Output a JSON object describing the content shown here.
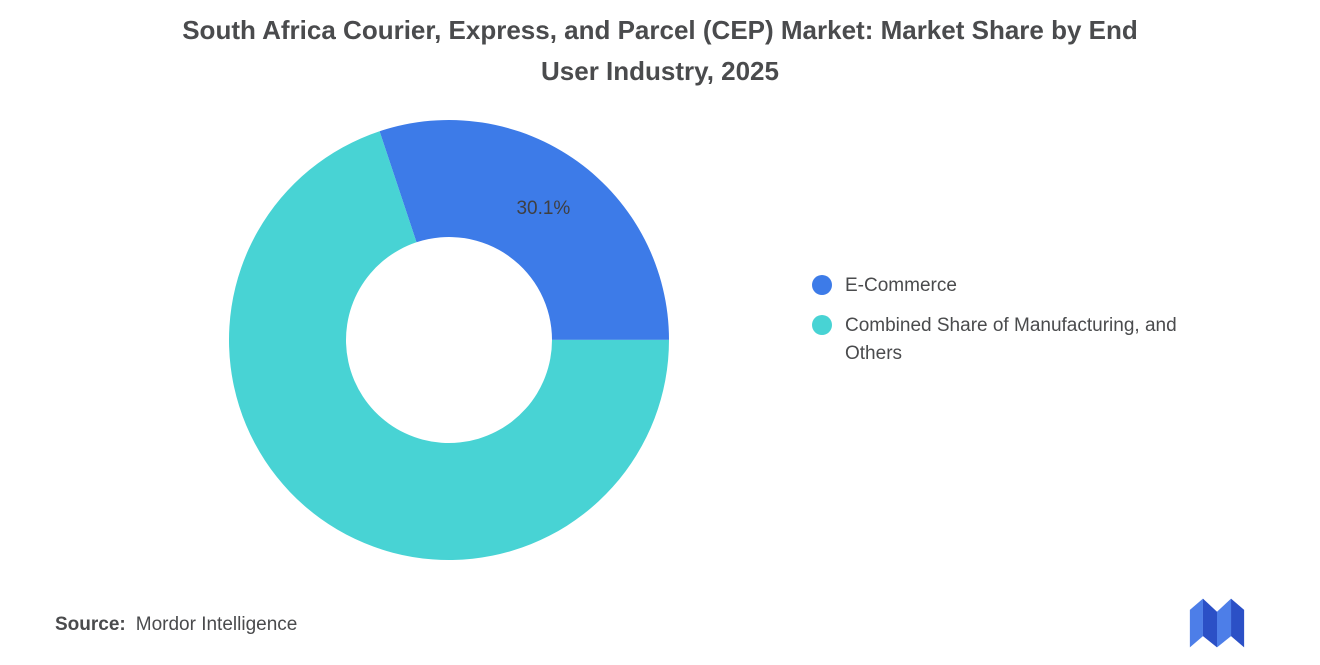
{
  "title": {
    "line1": "South Africa Courier, Express, and Parcel (CEP) Market: Market Share by End",
    "line2": "User Industry, 2025"
  },
  "chart_data": {
    "type": "pie",
    "subtype": "donut",
    "title": "South Africa Courier, Express, and Parcel (CEP) Market: Market Share by End User Industry, 2025",
    "start_angle_deg": -18.4,
    "inner_radius_ratio": 0.47,
    "legend_position": "right",
    "series": [
      {
        "name": "E-Commerce",
        "value": 30.1,
        "color": "#3d7be8",
        "data_label": "30.1%"
      },
      {
        "name": "Combined Share of Manufacturing, and Others",
        "value": 69.9,
        "color": "#48d3d4",
        "data_label": ""
      }
    ]
  },
  "legend": {
    "items": [
      {
        "label": "E-Commerce",
        "color": "#3d7be8"
      },
      {
        "label": "Combined Share of Manufacturing, and Others",
        "color": "#48d3d4"
      }
    ]
  },
  "source": {
    "label": "Source:",
    "value": "Mordor Intelligence"
  },
  "logo": {
    "name": "mordor-intelligence-logo",
    "color_dark": "#2b50c6",
    "color_light": "#4d7ee8"
  }
}
